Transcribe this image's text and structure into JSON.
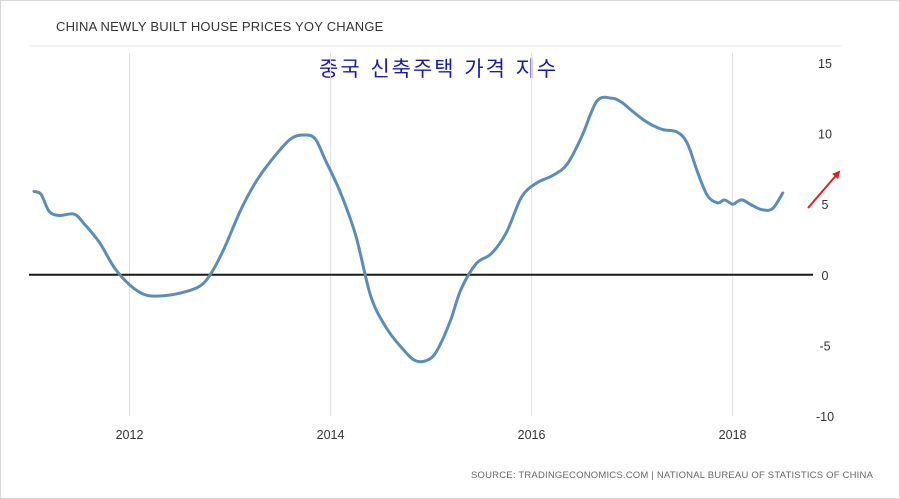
{
  "chart_data": {
    "type": "line",
    "title": "CHINA NEWLY BUILT HOUSE PRICES YOY CHANGE",
    "subtitle": "중국 신축주택 가격 지수",
    "source": "SOURCE: TRADINGECONOMICS.COM | NATIONAL BUREAU OF STATISTICS OF CHINA",
    "xlabel": "",
    "ylabel": "",
    "x_ticks": [
      "2012",
      "2014",
      "2016",
      "2018"
    ],
    "x_tick_values": [
      2012,
      2014,
      2016,
      2018
    ],
    "y_ticks": [
      "15",
      "10",
      "5",
      "0",
      "-5",
      "-10"
    ],
    "y_tick_values": [
      15,
      10,
      5,
      0,
      -5,
      -10
    ],
    "xlim": [
      2011.0,
      2018.8
    ],
    "ylim": [
      -10,
      15
    ],
    "grid": "vertical",
    "legend": "none",
    "colors": {
      "line": "#5b8db8",
      "zero_line": "#1a1a1a",
      "grid": "#e0e0e0",
      "arrow": "#e02020",
      "title": "#333333",
      "subtitle": "#1a1aa8"
    },
    "annotation": "red-arrow-up-right",
    "series": [
      {
        "name": "China Newly Built House Prices YoY Change",
        "x": [
          2011.05,
          2011.12,
          2011.2,
          2011.3,
          2011.45,
          2011.55,
          2011.7,
          2011.85,
          2012.0,
          2012.15,
          2012.3,
          2012.5,
          2012.7,
          2012.82,
          2012.95,
          2013.1,
          2013.25,
          2013.4,
          2013.6,
          2013.75,
          2013.85,
          2013.95,
          2014.1,
          2014.25,
          2014.4,
          2014.55,
          2014.7,
          2014.85,
          2015.0,
          2015.1,
          2015.2,
          2015.3,
          2015.45,
          2015.6,
          2015.75,
          2015.9,
          2016.05,
          2016.2,
          2016.35,
          2016.5,
          2016.65,
          2016.8,
          2016.9,
          2017.0,
          2017.15,
          2017.3,
          2017.45,
          2017.55,
          2017.65,
          2017.75,
          2017.85,
          2017.92,
          2018.0,
          2018.05,
          2018.1,
          2018.2,
          2018.3,
          2018.4,
          2018.5
        ],
        "values": [
          5.9,
          5.7,
          4.5,
          4.2,
          4.3,
          3.6,
          2.3,
          0.5,
          -0.7,
          -1.4,
          -1.5,
          -1.3,
          -0.8,
          0.2,
          2.0,
          4.5,
          6.5,
          8.0,
          9.6,
          9.9,
          9.6,
          8.1,
          5.8,
          2.8,
          -1.5,
          -3.7,
          -5.1,
          -6.1,
          -5.9,
          -4.8,
          -3.1,
          -1.0,
          0.8,
          1.5,
          3.0,
          5.5,
          6.5,
          7.0,
          7.8,
          9.8,
          12.3,
          12.5,
          12.2,
          11.6,
          10.8,
          10.3,
          10.1,
          9.3,
          7.3,
          5.6,
          5.1,
          5.3,
          5.0,
          5.2,
          5.3,
          4.9,
          4.6,
          4.7,
          5.8
        ]
      }
    ]
  }
}
